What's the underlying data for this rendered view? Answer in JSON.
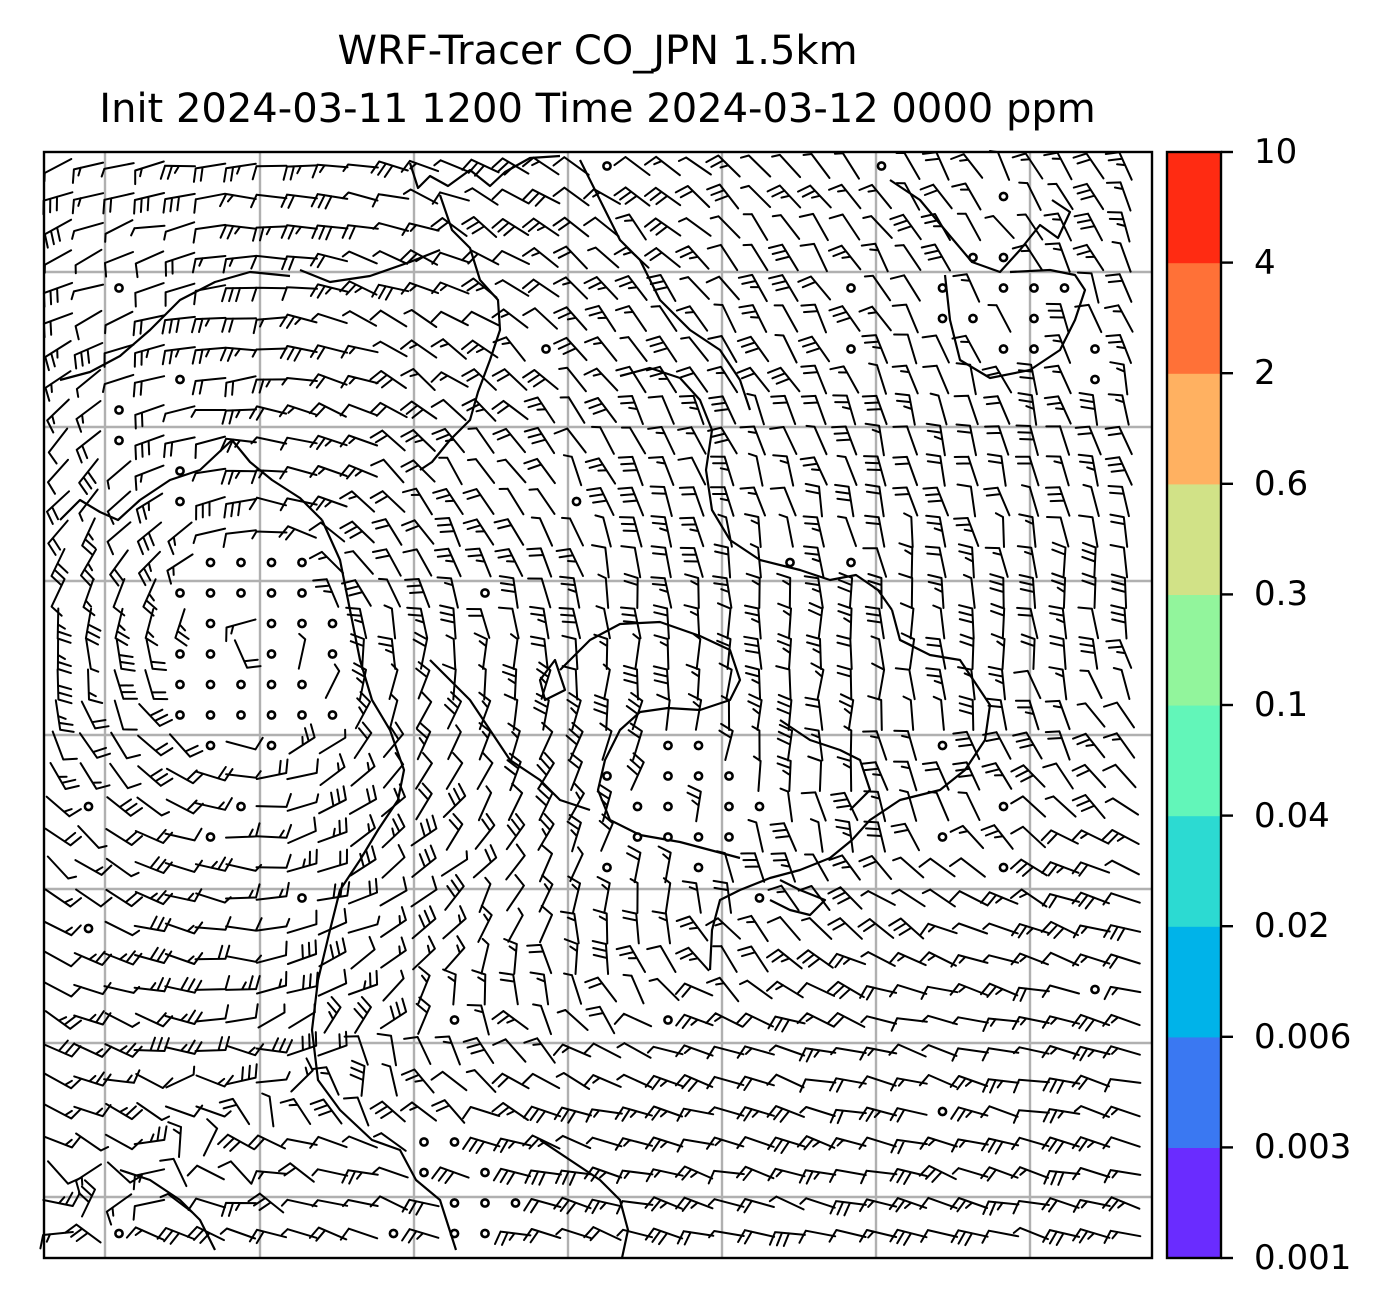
{
  "title": {
    "line1": "WRF-Tracer CO_JPN 1.5km",
    "line2": "Init 2024-03-11 1200 Time 2024-03-12 0000 ppm"
  },
  "colorbar": {
    "levels": [
      "0.001",
      "0.003",
      "0.006",
      "0.02",
      "0.04",
      "0.1",
      "0.3",
      "0.6",
      "2",
      "4",
      "10"
    ],
    "colors": [
      "#6a2cff",
      "#3a78f2",
      "#00b3e9",
      "#2cdad2",
      "#62f6b9",
      "#92f59c",
      "#d1e287",
      "#ffb161",
      "#ff7137",
      "#ff2b12"
    ]
  },
  "map": {
    "background": "#ffffff",
    "grid_color": "#b0b0b0",
    "contour": "all values below 0.001 ppm (blank)",
    "wind_barbs": "station-model wind barbs over Japan region",
    "calm_marker": "circle"
  }
}
